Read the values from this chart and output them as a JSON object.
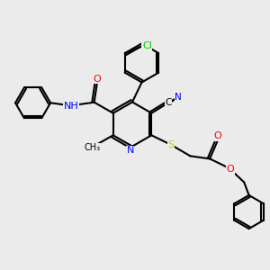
{
  "bg_color": "#ebebeb",
  "bond_color": "#000000",
  "bond_lw": 1.5,
  "atom_colors": {
    "N": "#0000ff",
    "O": "#ff0000",
    "S": "#cccc00",
    "Cl": "#00cc00",
    "C": "#000000",
    "H": "#000000"
  },
  "font_size": 7.5
}
